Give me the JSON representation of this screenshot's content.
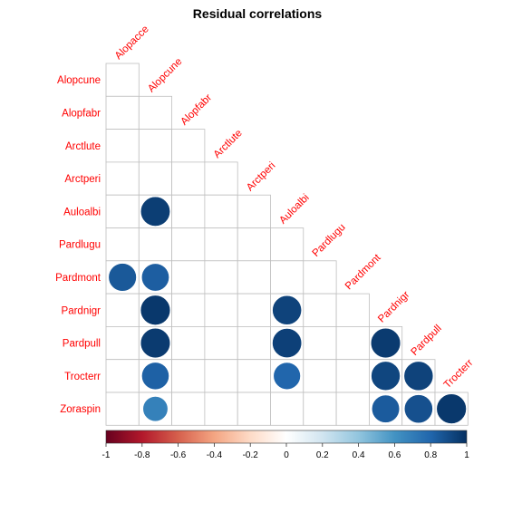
{
  "chart_data": {
    "type": "heatmap",
    "title": "Residual correlations",
    "labels": [
      "Alopacce",
      "Alopcune",
      "Alopfabr",
      "Arctlute",
      "Arctperi",
      "Auloalbi",
      "Pardlugu",
      "Pardmont",
      "Pardnigr",
      "Pardpull",
      "Trocterr",
      "Zoraspin"
    ],
    "row_labels": [
      "Alopcune",
      "Alopfabr",
      "Arctlute",
      "Arctperi",
      "Auloalbi",
      "Pardlugu",
      "Pardmont",
      "Pardnigr",
      "Pardpull",
      "Trocterr",
      "Zoraspin"
    ],
    "col_labels": [
      "Alopacce",
      "Alopcune",
      "Alopfabr",
      "Arctlute",
      "Arctperi",
      "Auloalbi",
      "Pardlugu",
      "Pardmont",
      "Pardnigr",
      "Pardpull",
      "Trocterr"
    ],
    "shape": "lower-triangular",
    "cells": [
      {
        "row": "Auloalbi",
        "col": "Alopcune",
        "value": 0.95
      },
      {
        "row": "Pardmont",
        "col": "Alopacce",
        "value": 0.85
      },
      {
        "row": "Pardmont",
        "col": "Alopcune",
        "value": 0.83
      },
      {
        "row": "Pardnigr",
        "col": "Alopcune",
        "value": 0.97
      },
      {
        "row": "Pardnigr",
        "col": "Auloalbi",
        "value": 0.93
      },
      {
        "row": "Pardpull",
        "col": "Alopcune",
        "value": 0.96
      },
      {
        "row": "Pardpull",
        "col": "Auloalbi",
        "value": 0.94
      },
      {
        "row": "Pardpull",
        "col": "Pardnigr",
        "value": 0.96
      },
      {
        "row": "Trocterr",
        "col": "Alopcune",
        "value": 0.82
      },
      {
        "row": "Trocterr",
        "col": "Auloalbi",
        "value": 0.8
      },
      {
        "row": "Trocterr",
        "col": "Pardnigr",
        "value": 0.92
      },
      {
        "row": "Trocterr",
        "col": "Pardpull",
        "value": 0.93
      },
      {
        "row": "Zoraspin",
        "col": "Alopcune",
        "value": 0.68
      },
      {
        "row": "Zoraspin",
        "col": "Pardnigr",
        "value": 0.84
      },
      {
        "row": "Zoraspin",
        "col": "Pardpull",
        "value": 0.88
      },
      {
        "row": "Zoraspin",
        "col": "Trocterr",
        "value": 0.97
      }
    ],
    "colorbar": {
      "range": [
        -1,
        1
      ],
      "ticks": [
        "-1",
        "-0.8",
        "-0.6",
        "-0.4",
        "-0.2",
        "0",
        "0.2",
        "0.4",
        "0.6",
        "0.8",
        "1"
      ],
      "tick_values": [
        -1,
        -0.8,
        -0.6,
        -0.4,
        -0.2,
        0,
        0.2,
        0.4,
        0.6,
        0.8,
        1
      ],
      "palette": "red-white-blue"
    },
    "grid": true,
    "legend": "bottom"
  }
}
